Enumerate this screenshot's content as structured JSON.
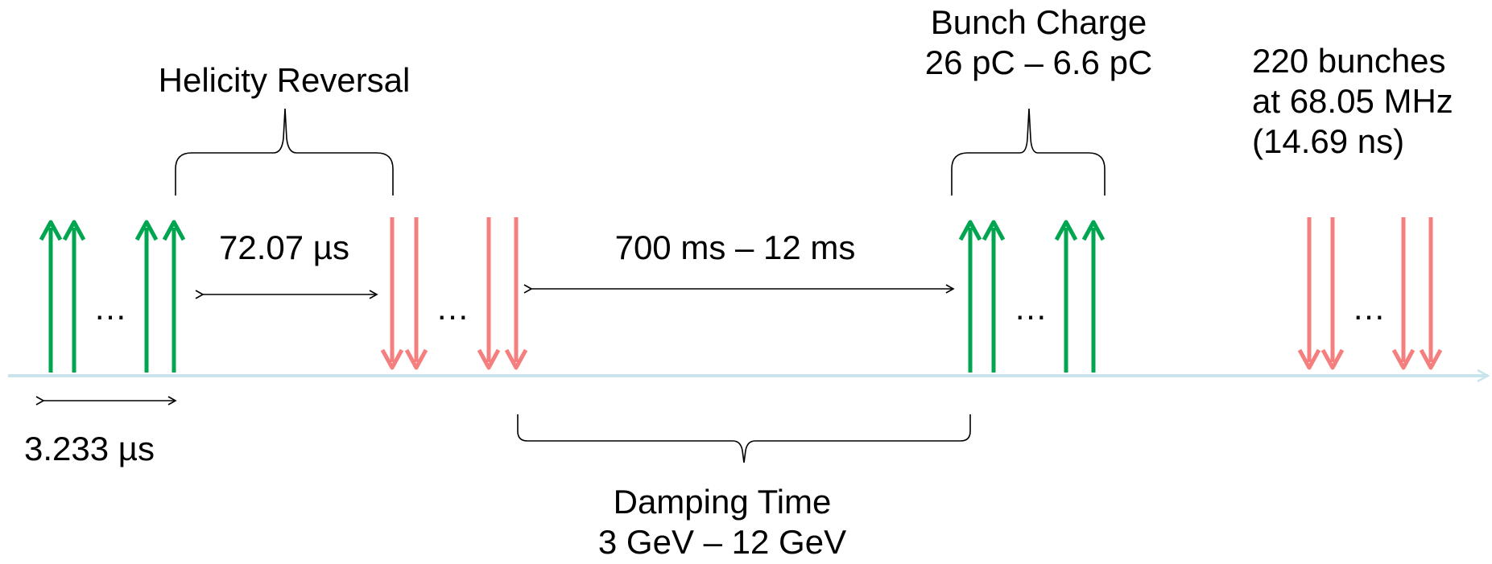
{
  "colors": {
    "up_arrow": "#00a64f",
    "down_arrow": "#f57f7f",
    "timeline": "#c9e4ea",
    "bracket": "#000000"
  },
  "icons": {
    "up_arrow": "green-up-arrow",
    "down_arrow": "pink-down-arrow"
  },
  "labels": {
    "helicity_reversal": "Helicity Reversal",
    "bunch_charge_title": "Bunch Charge",
    "bunch_charge_range": "26 pC – 6.6 pC",
    "bunches_count": "220 bunches",
    "bunches_freq": "at 68.05 MHz",
    "bunches_period": "(14.69 ns)",
    "reversal_gap": "72.07 µs",
    "damping_gap": "700 ms – 12 ms",
    "bunch_spacing": "3.233 µs",
    "damping_title": "Damping Time",
    "damping_range": "3 GeV – 12 GeV",
    "ellipsis": "…"
  }
}
